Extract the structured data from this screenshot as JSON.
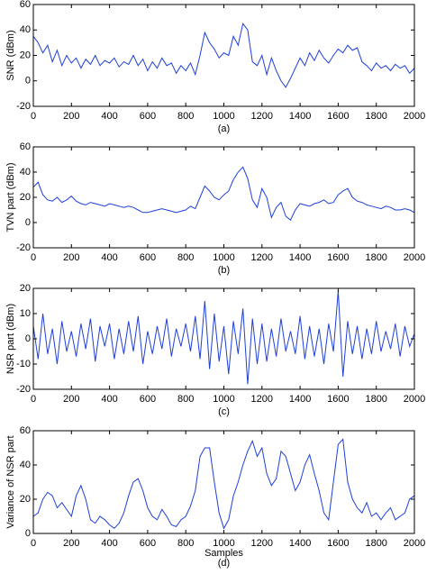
{
  "chart_data": [
    {
      "type": "line",
      "ylabel": "SNR (dBm)",
      "caption": "(a)",
      "color": "#1f3fd8",
      "x": [
        0,
        25,
        50,
        75,
        100,
        125,
        150,
        175,
        200,
        225,
        250,
        275,
        300,
        325,
        350,
        375,
        400,
        425,
        450,
        475,
        500,
        525,
        550,
        575,
        600,
        625,
        650,
        675,
        700,
        725,
        750,
        775,
        800,
        825,
        850,
        875,
        900,
        925,
        950,
        975,
        1000,
        1025,
        1050,
        1075,
        1100,
        1125,
        1150,
        1175,
        1200,
        1225,
        1250,
        1275,
        1300,
        1325,
        1350,
        1375,
        1400,
        1425,
        1450,
        1475,
        1500,
        1525,
        1550,
        1575,
        1600,
        1625,
        1650,
        1675,
        1700,
        1725,
        1750,
        1775,
        1800,
        1825,
        1850,
        1875,
        1900,
        1925,
        1950,
        1975,
        2000
      ],
      "values": [
        35,
        30,
        22,
        28,
        15,
        24,
        12,
        20,
        14,
        18,
        10,
        17,
        13,
        20,
        12,
        16,
        14,
        18,
        11,
        15,
        13,
        20,
        12,
        17,
        8,
        15,
        10,
        18,
        12,
        14,
        6,
        12,
        8,
        14,
        5,
        20,
        38,
        30,
        25,
        18,
        22,
        20,
        35,
        28,
        45,
        40,
        15,
        12,
        20,
        5,
        18,
        8,
        0,
        -5,
        2,
        10,
        18,
        12,
        22,
        16,
        24,
        18,
        14,
        20,
        25,
        22,
        28,
        24,
        26,
        15,
        12,
        8,
        14,
        10,
        12,
        8,
        13,
        10,
        12,
        6,
        10
      ],
      "xlim": [
        0,
        2000
      ],
      "xticks": [
        0,
        200,
        400,
        600,
        800,
        1000,
        1200,
        1400,
        1600,
        1800,
        2000
      ],
      "ylim": [
        -20,
        60
      ],
      "yticks": [
        -20,
        0,
        20,
        40,
        60
      ]
    },
    {
      "type": "line",
      "ylabel": "TVN part (dBm)",
      "caption": "(b)",
      "color": "#1f3fd8",
      "x": [
        0,
        25,
        50,
        75,
        100,
        125,
        150,
        175,
        200,
        225,
        250,
        275,
        300,
        325,
        350,
        375,
        400,
        425,
        450,
        475,
        500,
        525,
        550,
        575,
        600,
        625,
        650,
        675,
        700,
        725,
        750,
        775,
        800,
        825,
        850,
        875,
        900,
        925,
        950,
        975,
        1000,
        1025,
        1050,
        1075,
        1100,
        1125,
        1150,
        1175,
        1200,
        1225,
        1250,
        1275,
        1300,
        1325,
        1350,
        1375,
        1400,
        1425,
        1450,
        1475,
        1500,
        1525,
        1550,
        1575,
        1600,
        1625,
        1650,
        1675,
        1700,
        1725,
        1750,
        1775,
        1800,
        1825,
        1850,
        1875,
        1900,
        1925,
        1950,
        1975,
        2000
      ],
      "values": [
        28,
        32,
        22,
        18,
        17,
        20,
        16,
        18,
        21,
        17,
        15,
        14,
        16,
        15,
        14,
        13,
        15,
        14,
        13,
        12,
        13,
        12,
        10,
        8,
        8,
        9,
        10,
        11,
        10,
        9,
        8,
        9,
        10,
        13,
        11,
        20,
        29,
        25,
        20,
        18,
        22,
        25,
        34,
        40,
        44,
        35,
        18,
        12,
        27,
        20,
        4,
        12,
        16,
        5,
        2,
        10,
        15,
        14,
        13,
        15,
        16,
        18,
        15,
        16,
        22,
        25,
        27,
        20,
        17,
        16,
        14,
        13,
        12,
        11,
        13,
        12,
        10,
        10,
        11,
        10,
        8
      ],
      "xlim": [
        0,
        2000
      ],
      "xticks": [
        0,
        200,
        400,
        600,
        800,
        1000,
        1200,
        1400,
        1600,
        1800,
        2000
      ],
      "ylim": [
        -20,
        60
      ],
      "yticks": [
        -20,
        0,
        20,
        40,
        60
      ]
    },
    {
      "type": "line",
      "ylabel": "NSR part (dBm)",
      "caption": "(c)",
      "color": "#1f3fd8",
      "x": [
        0,
        25,
        50,
        75,
        100,
        125,
        150,
        175,
        200,
        225,
        250,
        275,
        300,
        325,
        350,
        375,
        400,
        425,
        450,
        475,
        500,
        525,
        550,
        575,
        600,
        625,
        650,
        675,
        700,
        725,
        750,
        775,
        800,
        825,
        850,
        875,
        900,
        925,
        950,
        975,
        1000,
        1025,
        1050,
        1075,
        1100,
        1125,
        1150,
        1175,
        1200,
        1225,
        1250,
        1275,
        1300,
        1325,
        1350,
        1375,
        1400,
        1425,
        1450,
        1475,
        1500,
        1525,
        1550,
        1575,
        1600,
        1625,
        1650,
        1675,
        1700,
        1725,
        1750,
        1775,
        1800,
        1825,
        1850,
        1875,
        1900,
        1925,
        1950,
        1975,
        2000
      ],
      "values": [
        5,
        -8,
        10,
        -6,
        4,
        -10,
        7,
        -5,
        3,
        -7,
        6,
        -4,
        8,
        -9,
        5,
        -3,
        6,
        -8,
        4,
        -6,
        7,
        -5,
        9,
        -10,
        3,
        -6,
        5,
        -4,
        8,
        -7,
        4,
        -3,
        6,
        -5,
        9,
        -8,
        15,
        -12,
        10,
        -9,
        5,
        -14,
        7,
        -6,
        12,
        -18,
        8,
        -10,
        6,
        -9,
        4,
        -7,
        8,
        -5,
        3,
        -6,
        9,
        -8,
        5,
        -7,
        4,
        -10,
        6,
        -5,
        19,
        -15,
        7,
        -6,
        5,
        -8,
        4,
        -6,
        7,
        -5,
        3,
        -4,
        6,
        -7,
        5,
        -3,
        2
      ],
      "xlim": [
        0,
        2000
      ],
      "xticks": [
        0,
        200,
        400,
        600,
        800,
        1000,
        1200,
        1400,
        1600,
        1800,
        2000
      ],
      "ylim": [
        -20,
        20
      ],
      "yticks": [
        -20,
        -10,
        0,
        10,
        20
      ]
    },
    {
      "type": "line",
      "ylabel": "Variance of NSR part",
      "xlabel": "Samples",
      "caption": "(d)",
      "color": "#1f3fd8",
      "x": [
        0,
        25,
        50,
        75,
        100,
        125,
        150,
        175,
        200,
        225,
        250,
        275,
        300,
        325,
        350,
        375,
        400,
        425,
        450,
        475,
        500,
        525,
        550,
        575,
        600,
        625,
        650,
        675,
        700,
        725,
        750,
        775,
        800,
        825,
        850,
        875,
        900,
        925,
        950,
        975,
        1000,
        1025,
        1050,
        1075,
        1100,
        1125,
        1150,
        1175,
        1200,
        1225,
        1250,
        1275,
        1300,
        1325,
        1350,
        1375,
        1400,
        1425,
        1450,
        1475,
        1500,
        1525,
        1550,
        1575,
        1600,
        1625,
        1650,
        1675,
        1700,
        1725,
        1750,
        1775,
        1800,
        1825,
        1850,
        1875,
        1900,
        1925,
        1950,
        1975,
        2000
      ],
      "values": [
        10,
        12,
        20,
        24,
        22,
        15,
        18,
        14,
        10,
        22,
        28,
        20,
        8,
        6,
        10,
        8,
        5,
        3,
        6,
        12,
        22,
        30,
        32,
        25,
        15,
        10,
        8,
        14,
        10,
        5,
        4,
        8,
        10,
        16,
        25,
        45,
        50,
        50,
        30,
        12,
        3,
        8,
        22,
        30,
        40,
        48,
        54,
        45,
        50,
        35,
        28,
        32,
        48,
        45,
        35,
        25,
        30,
        40,
        46,
        35,
        25,
        12,
        8,
        30,
        52,
        55,
        30,
        20,
        15,
        12,
        18,
        10,
        12,
        8,
        12,
        15,
        8,
        10,
        12,
        20,
        22
      ],
      "xlim": [
        0,
        2000
      ],
      "xticks": [
        0,
        200,
        400,
        600,
        800,
        1000,
        1200,
        1400,
        1600,
        1800,
        2000
      ],
      "ylim": [
        0,
        60
      ],
      "yticks": [
        0,
        20,
        40,
        60
      ]
    }
  ]
}
